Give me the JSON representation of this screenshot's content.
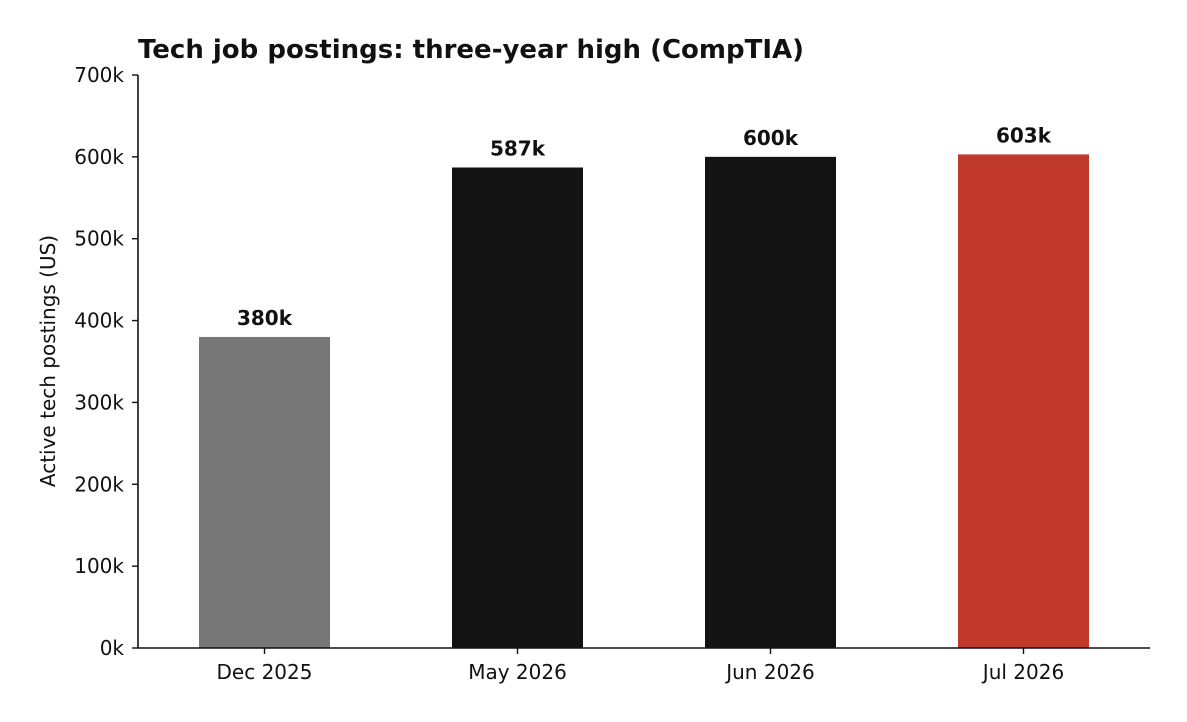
{
  "chart_data": {
    "type": "bar",
    "title": "Tech job postings: three-year high (CompTIA)",
    "xlabel": "",
    "ylabel": "Active tech postings (US)",
    "categories": [
      "Dec 2025",
      "May 2026",
      "Jun 2026",
      "Jul 2026"
    ],
    "values": [
      380000,
      587000,
      600000,
      603000
    ],
    "data_labels": [
      "380k",
      "587k",
      "600k",
      "603k"
    ],
    "bar_colors": [
      "#777777",
      "#131313",
      "#131313",
      "#c0392b"
    ],
    "ylim": [
      0,
      700000
    ],
    "yticks": [
      0,
      100000,
      200000,
      300000,
      400000,
      500000,
      600000,
      700000
    ],
    "ytick_labels": [
      "0k",
      "100k",
      "200k",
      "300k",
      "400k",
      "500k",
      "600k",
      "700k"
    ],
    "grid": false,
    "legend": "none"
  }
}
